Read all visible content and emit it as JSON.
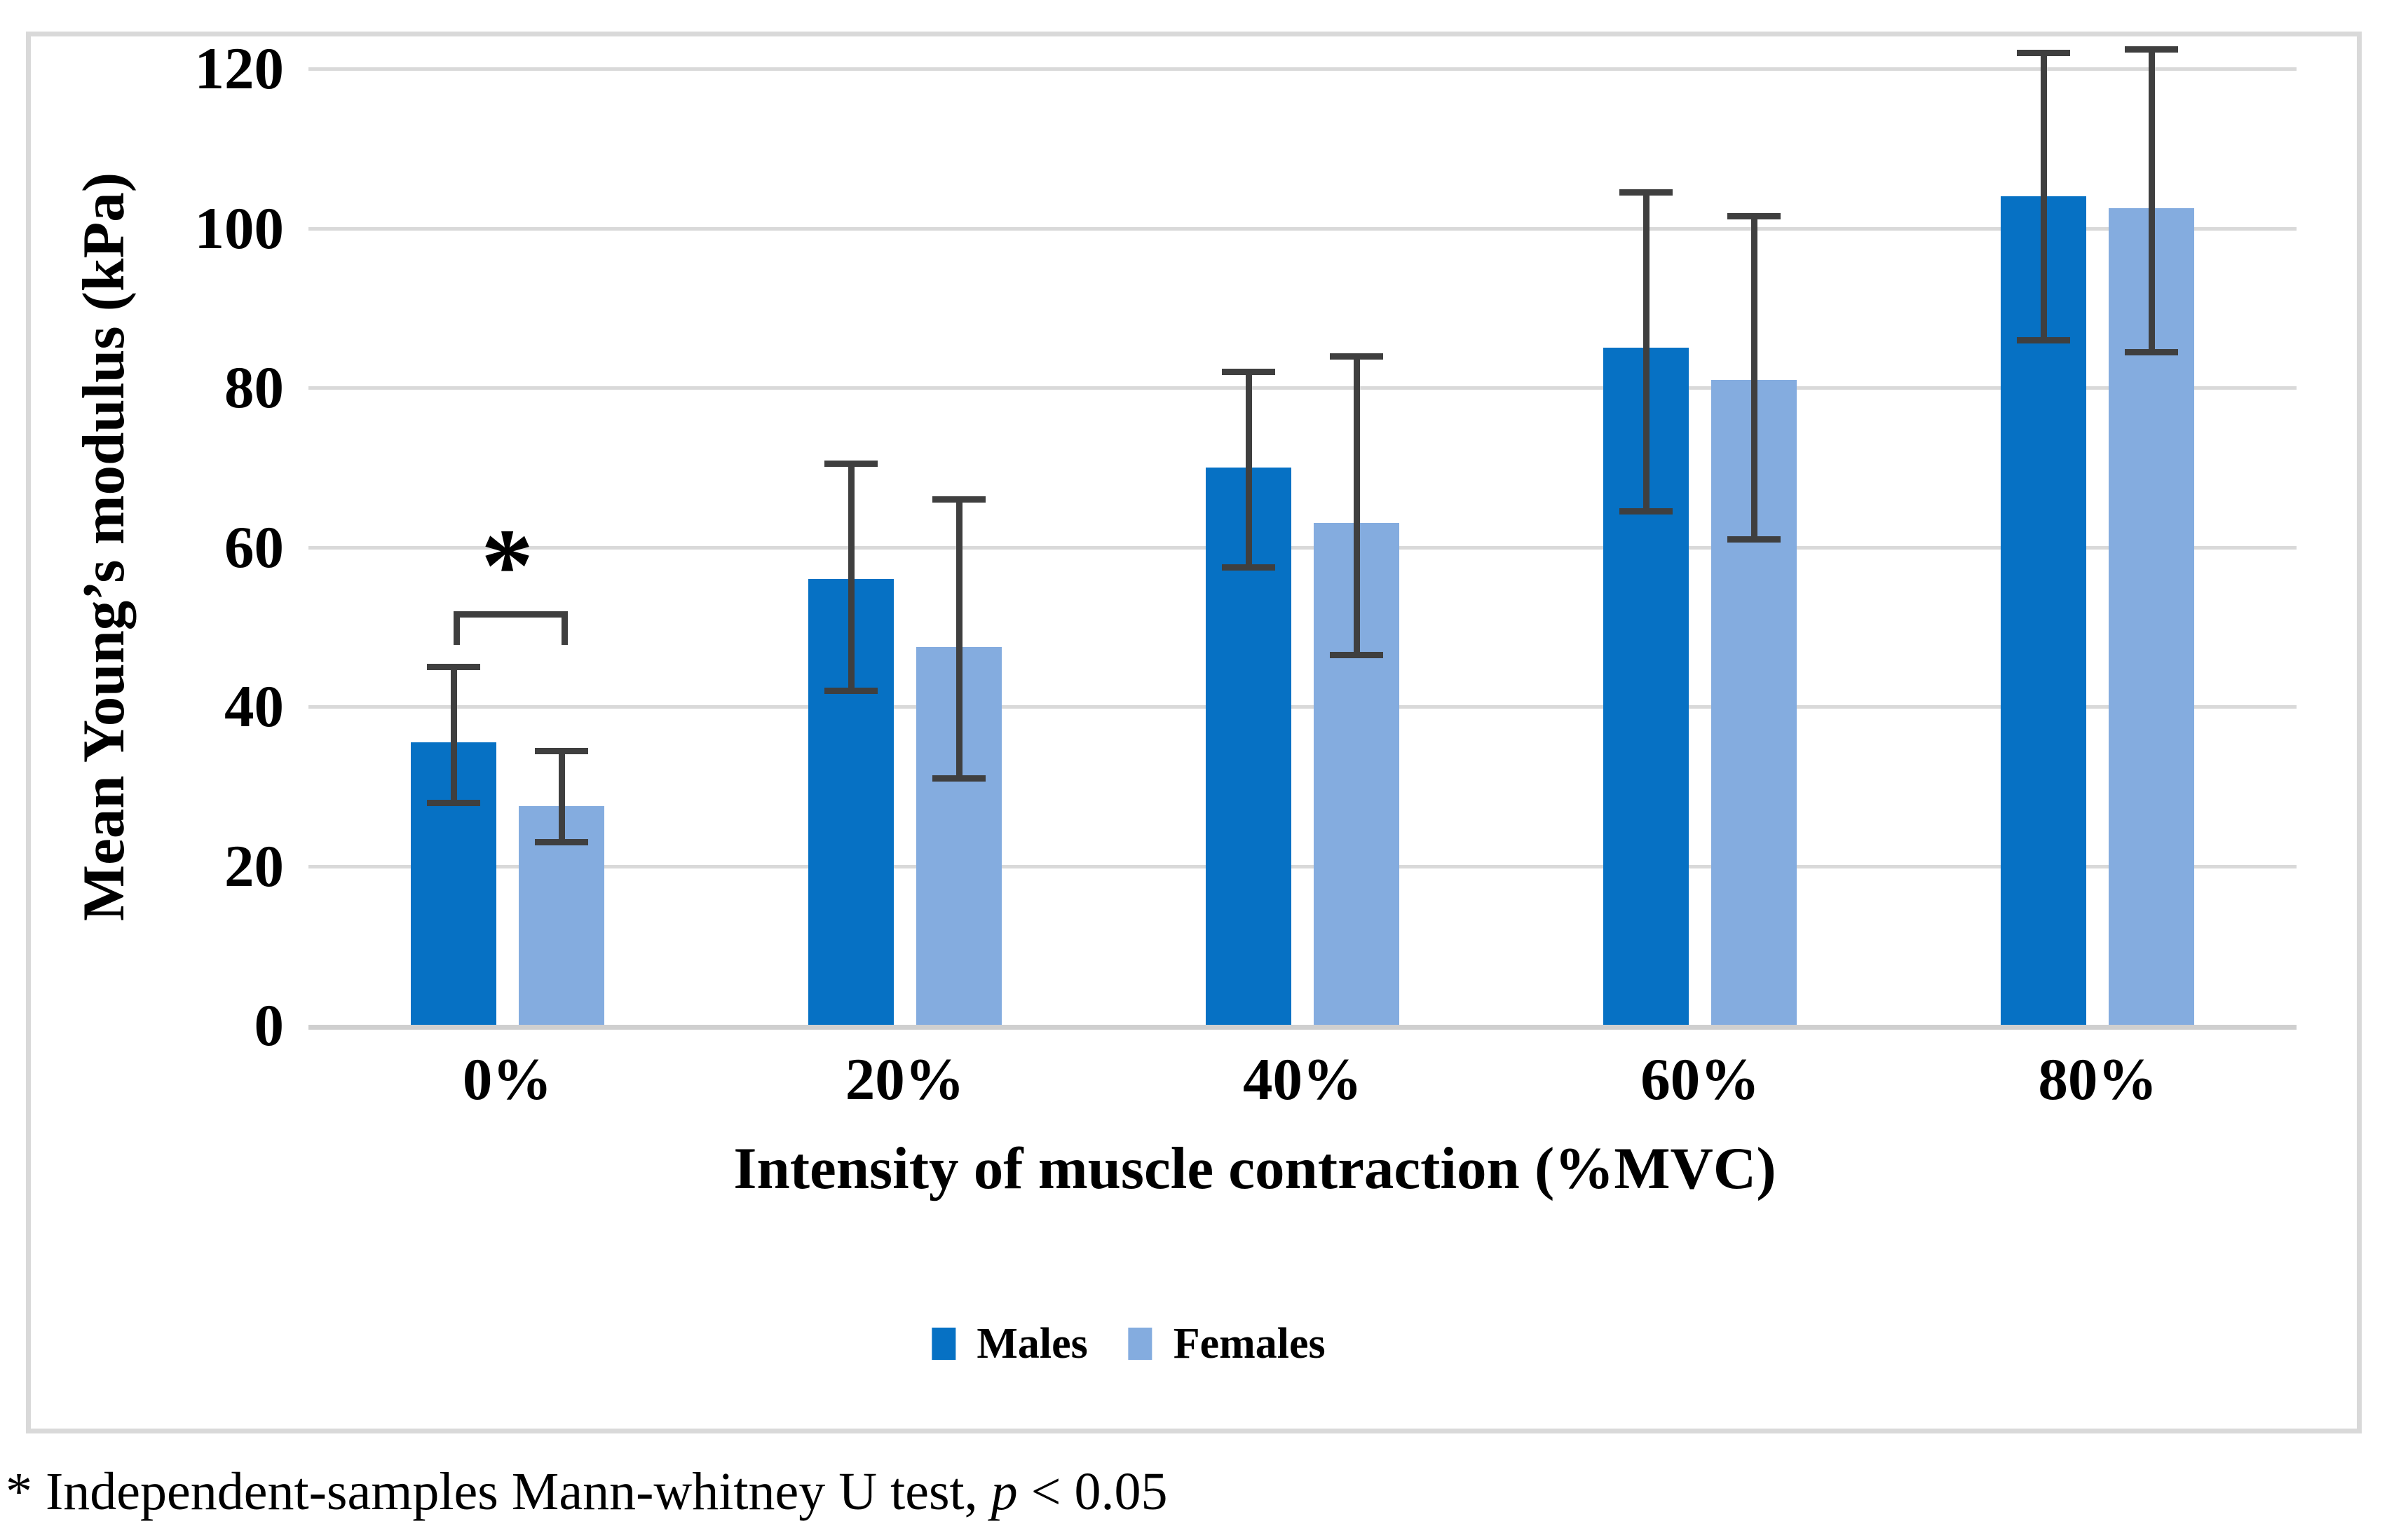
{
  "chart_data": {
    "type": "bar",
    "title": "",
    "categories": [
      "0%",
      "20%",
      "40%",
      "60%",
      "80%"
    ],
    "series": [
      {
        "name": "Males",
        "color": "#0671c4",
        "values": [
          35.5,
          56,
          70,
          85,
          104
        ],
        "error_low": [
          28,
          42,
          57.5,
          64.5,
          86
        ],
        "error_high": [
          45,
          70.5,
          82,
          104.5,
          122
        ]
      },
      {
        "name": "Females",
        "color": "#84acdf",
        "values": [
          27.5,
          47.5,
          63,
          81,
          102.5
        ],
        "error_low": [
          23,
          31,
          46.5,
          61,
          84.5
        ],
        "error_high": [
          34.5,
          66,
          84,
          101.5,
          122.5
        ]
      }
    ],
    "xlabel": "Intensity of muscle contraction (%MVC)",
    "ylabel": "Mean Young’s modulus (kPa)",
    "ylim": [
      0,
      120
    ],
    "y_ticks": [
      0,
      20,
      40,
      60,
      80,
      100,
      120
    ],
    "grid": "horizontal",
    "gridline_color": "#d9d9d9",
    "error_bar_color": "#3f3f3f",
    "legend_position": "bottom",
    "significance": {
      "category": "0%",
      "between": [
        "Males",
        "Females"
      ],
      "label": "*",
      "y_kpa": 52
    }
  },
  "footnote": {
    "prefix": "* Independent-samples Mann-whitney U test, ",
    "italic": "p",
    "suffix": " < 0.05"
  }
}
